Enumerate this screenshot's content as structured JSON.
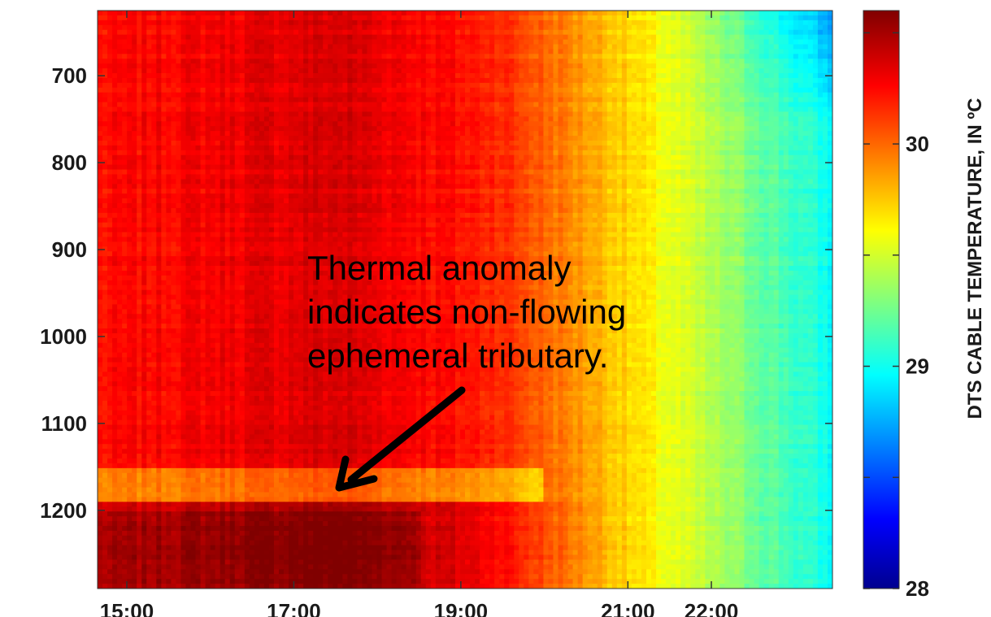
{
  "chart_data": {
    "type": "heatmap",
    "title": "",
    "xlabel": "",
    "ylabel": "",
    "x_ticks": [
      "15:00",
      "17:00",
      "19:00",
      "21:00",
      "22:00"
    ],
    "y_ticks": [
      700,
      800,
      900,
      1000,
      1100,
      1200
    ],
    "ylim": [
      1290,
      625
    ],
    "colorbar": {
      "label": "DTS CABLE TEMPERATURE, IN ºC",
      "min": 28,
      "max": 30.6,
      "ticks": [
        28,
        29,
        30
      ],
      "colormap": "jet"
    },
    "annotation": {
      "lines": [
        "Thermal anomaly",
        "indicates non-flowing",
        "ephemeral tributary."
      ],
      "target_time": "17:50",
      "target_distance": 1175
    },
    "x_tick_hours": [
      15,
      17,
      19,
      21,
      22
    ]
  }
}
